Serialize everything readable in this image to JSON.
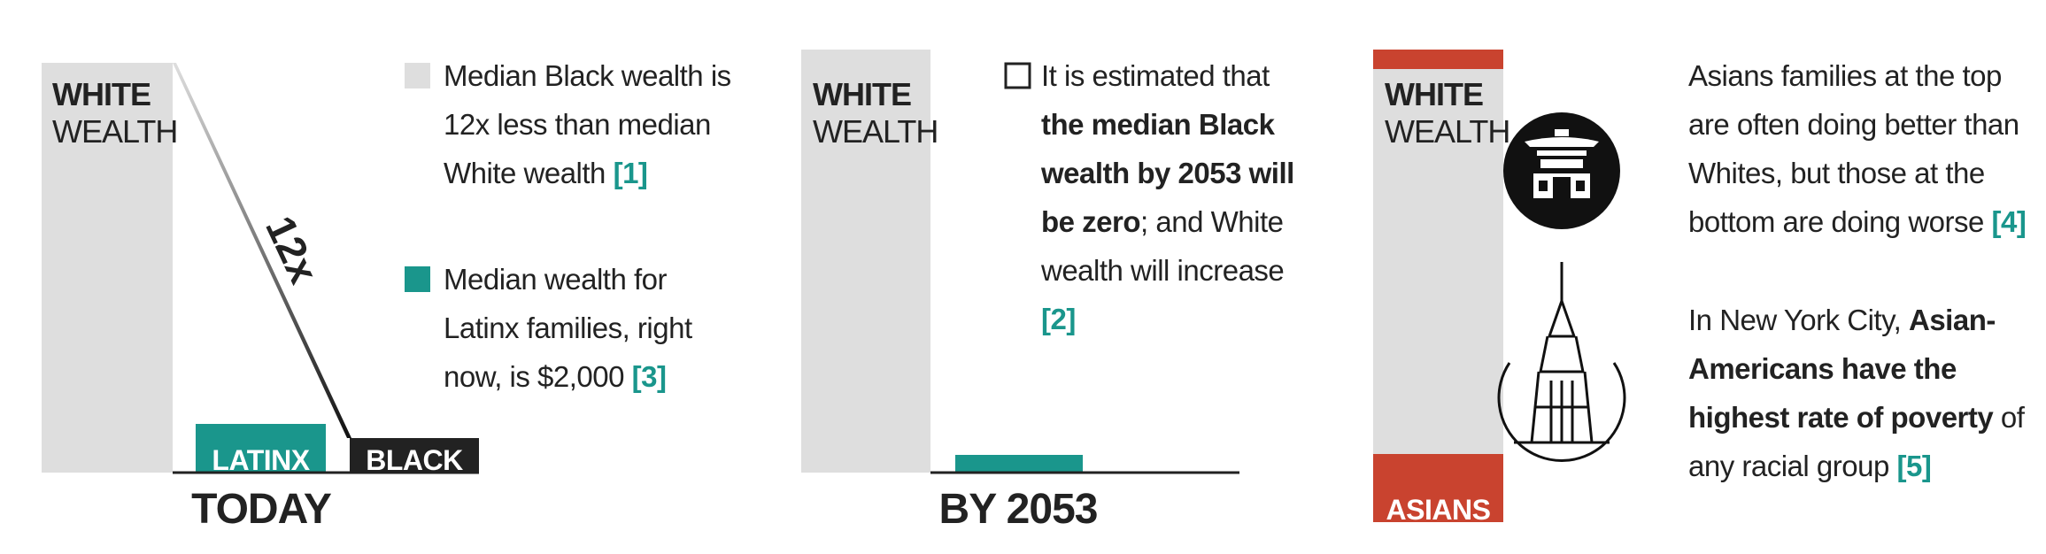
{
  "panel_today": {
    "white_line1": "WHITE",
    "white_line2": "WEALTH",
    "bar_latinx": "LATINX",
    "bar_black": "BLACK",
    "ratio": "12x",
    "caption": "TODAY",
    "notes": [
      {
        "text": "Median Black wealth is 12x less than median White wealth",
        "ref": "[1]"
      },
      {
        "text": "Median wealth for Latinx families, right now, is $2,000",
        "ref": "[3]"
      }
    ]
  },
  "panel_2053": {
    "white_line1": "WHITE",
    "white_line2": "WEALTH",
    "caption": "BY 2053",
    "note": {
      "before": "It is estimated that ",
      "bold": "the median Black wealth by 2053 will be zero",
      "after": "; and White wealth will increase",
      "ref": "[2]"
    }
  },
  "panel_asian": {
    "white_line1": "WHITE",
    "white_line2": "WEALTH",
    "bar_asians": "ASIANS",
    "notes": [
      {
        "text": "Asians families at the top are often doing better than Whites, but those at the bottom are doing worse",
        "ref": "[4]"
      },
      {
        "before": "In New York City, ",
        "bold": "Asian-Americans have the highest rate of poverty",
        "after": " of any racial group",
        "ref": "[5]"
      }
    ]
  }
}
